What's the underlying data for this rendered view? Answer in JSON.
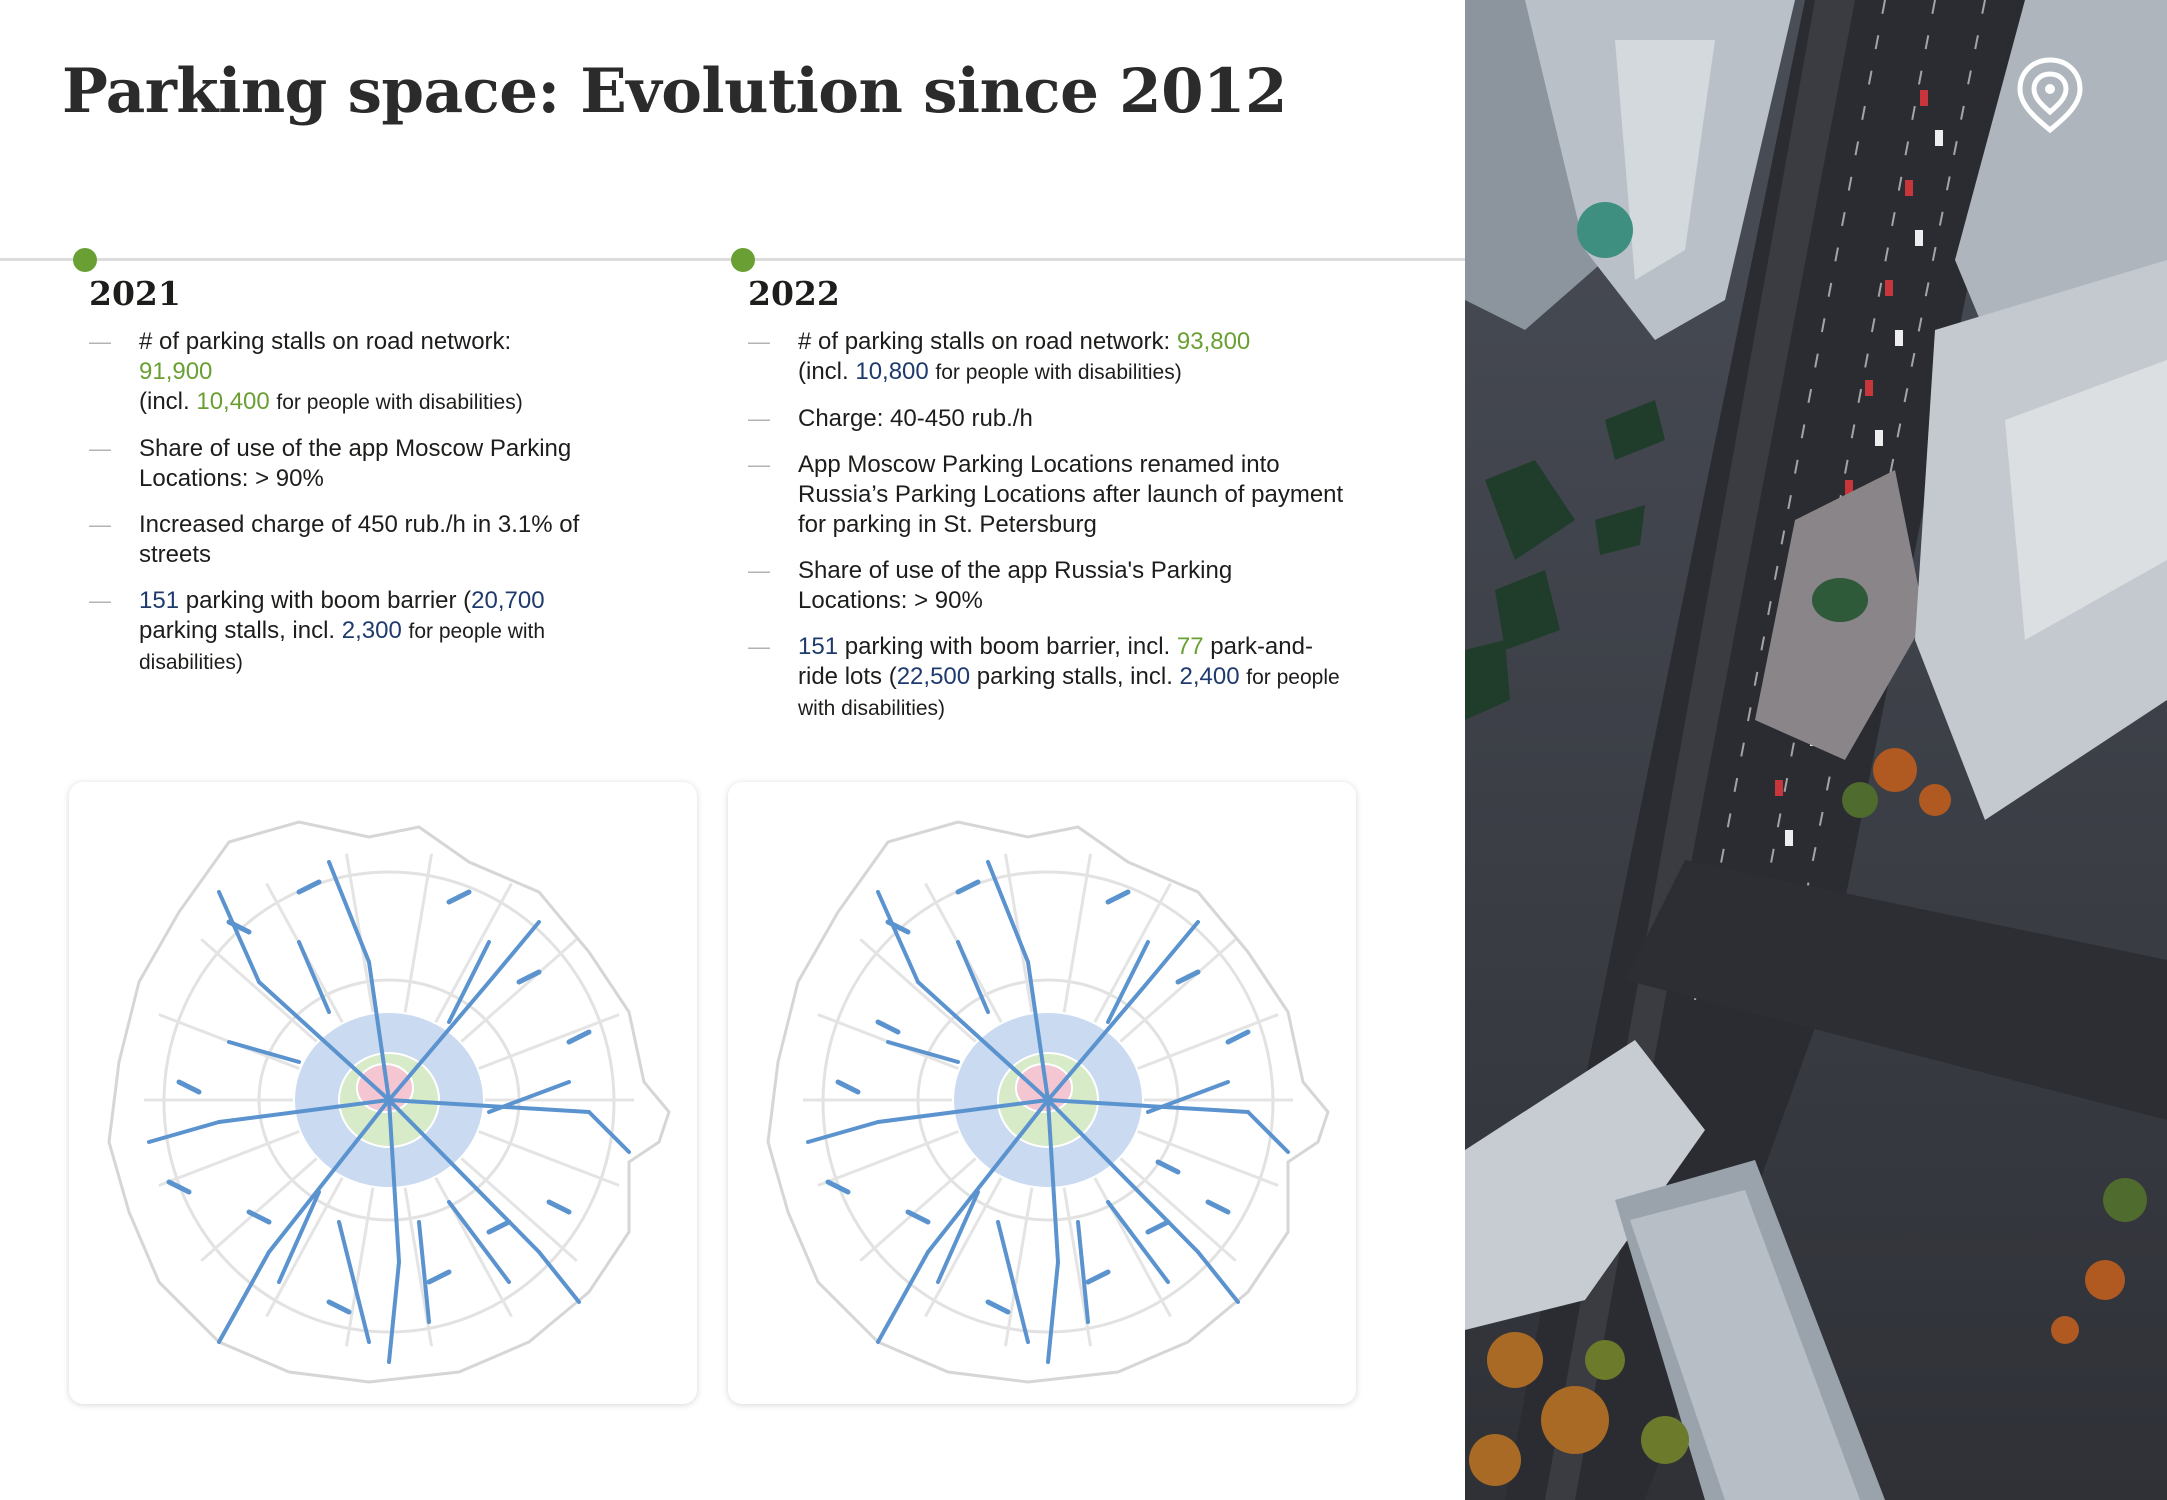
{
  "page": {
    "title": "Parking space: Evolution since 2012"
  },
  "colors": {
    "accent_green": "#6aa033",
    "accent_navy": "#1f3b6e",
    "timeline_dot": "#6aa033",
    "paid_street": "#5b93cf"
  },
  "col2021": {
    "year": "2021",
    "item1": {
      "text": "# of parking stalls on road network:",
      "value": "91,900",
      "incl": "(incl.",
      "incl_value": "10,400",
      "incl_tail": "for people with disabilities)"
    },
    "item2": {
      "text": "Share of use of the app Moscow Parking Locations: > 90%"
    },
    "item3": {
      "text": "Increased charge of 450 rub./h in 3.1% of streets"
    },
    "item4": {
      "v1": "151",
      "t1": "parking with boom barrier (",
      "v2": "20,700",
      "t2": "parking stalls, incl.",
      "v3": "2,300",
      "t3": "for people with disabilities)"
    }
  },
  "col2022": {
    "year": "2022",
    "item1": {
      "text": "# of parking stalls on road network:",
      "value": "93,800",
      "incl": "(incl.",
      "incl_value": "10,800",
      "incl_tail": "for people with disabilities)"
    },
    "item2": {
      "text": "Charge: 40-450 rub./h"
    },
    "item3": {
      "text": "App Moscow Parking Locations renamed into Russia’s Parking Locations after launch of payment for parking in St. Petersburg"
    },
    "item4": {
      "text": "Share of use of the app Russia's Parking Locations: > 90%"
    },
    "item5": {
      "v1": "151",
      "t1": "parking with boom barrier, incl.",
      "v2": "77",
      "t2": "park-and-ride lots (",
      "v3": "22,500",
      "t3": "parking stalls, incl.",
      "v4": "2,400",
      "t4": "for people with disabilities)"
    }
  },
  "maps": {
    "map2021": {
      "year": "2021"
    },
    "map2022": {
      "year": "2022"
    }
  },
  "photo": {
    "subject": "aerial-city-street-photo"
  },
  "logo": {
    "icon": "location-pin-logo-icon"
  }
}
